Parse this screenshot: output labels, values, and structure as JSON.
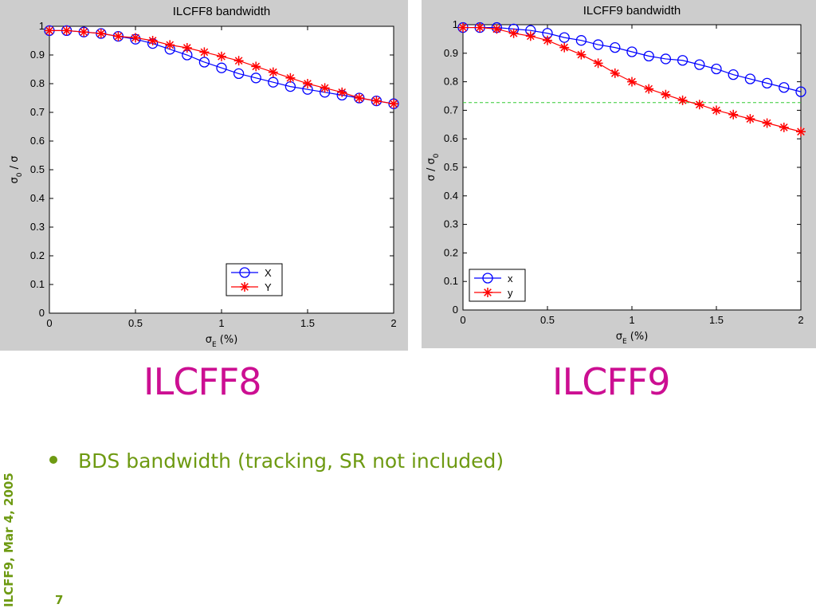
{
  "slide": {
    "caption_left": "ILCFF8",
    "caption_right": "ILCFF9",
    "bullet": "BDS bandwidth (tracking, SR not included)",
    "side_date": "ILCFF9, Mar 4, 2005",
    "page_number": "7"
  },
  "colors": {
    "caption": "#cc0f92",
    "bullet": "#6e9a12",
    "series_x": "#0000ff",
    "series_y": "#ff0000",
    "ref_line": "#33cc33"
  },
  "chart_data": [
    {
      "type": "line",
      "title": "ILCFF8 bandwidth",
      "xlabel": "σ_E (%)",
      "ylabel": "σ_0 / σ",
      "xlim": [
        0,
        2
      ],
      "ylim": [
        0,
        1
      ],
      "xticks": [
        "0",
        "0.5",
        "1",
        "1.5",
        "2"
      ],
      "yticks": [
        "0",
        "0.1",
        "0.2",
        "0.3",
        "0.4",
        "0.5",
        "0.6",
        "0.7",
        "0.8",
        "0.9",
        "1"
      ],
      "legend_position": "bottom-center",
      "grid": false,
      "x": [
        0,
        0.1,
        0.2,
        0.3,
        0.4,
        0.5,
        0.6,
        0.7,
        0.8,
        0.9,
        1.0,
        1.1,
        1.2,
        1.3,
        1.4,
        1.5,
        1.6,
        1.7,
        1.8,
        1.9,
        2.0
      ],
      "series": [
        {
          "name": "X",
          "marker": "circle",
          "values": [
            0.985,
            0.985,
            0.98,
            0.975,
            0.965,
            0.955,
            0.94,
            0.92,
            0.9,
            0.875,
            0.855,
            0.835,
            0.82,
            0.805,
            0.79,
            0.78,
            0.77,
            0.76,
            0.75,
            0.74,
            0.73
          ]
        },
        {
          "name": "Y",
          "marker": "star",
          "values": [
            0.985,
            0.985,
            0.98,
            0.975,
            0.965,
            0.96,
            0.95,
            0.935,
            0.925,
            0.91,
            0.895,
            0.88,
            0.86,
            0.84,
            0.82,
            0.8,
            0.785,
            0.77,
            0.75,
            0.74,
            0.73
          ]
        }
      ]
    },
    {
      "type": "line",
      "title": "ILCFF9 bandwidth",
      "xlabel": "σ_E (%)",
      "ylabel": "σ / σ_0",
      "xlim": [
        0,
        2
      ],
      "ylim": [
        0,
        1
      ],
      "xticks": [
        "0",
        "0.5",
        "1",
        "1.5",
        "2"
      ],
      "yticks": [
        "0",
        "0.1",
        "0.2",
        "0.3",
        "0.4",
        "0.5",
        "0.6",
        "0.7",
        "0.8",
        "0.9",
        "1"
      ],
      "legend_position": "bottom-left",
      "grid": false,
      "reference_line_y": 0.727,
      "x": [
        0,
        0.1,
        0.2,
        0.3,
        0.4,
        0.5,
        0.6,
        0.7,
        0.8,
        0.9,
        1.0,
        1.1,
        1.2,
        1.3,
        1.4,
        1.5,
        1.6,
        1.7,
        1.8,
        1.9,
        2.0
      ],
      "series": [
        {
          "name": "x",
          "marker": "circle",
          "values": [
            0.99,
            0.99,
            0.99,
            0.985,
            0.98,
            0.97,
            0.955,
            0.945,
            0.93,
            0.92,
            0.905,
            0.89,
            0.88,
            0.875,
            0.86,
            0.845,
            0.825,
            0.81,
            0.795,
            0.78,
            0.765
          ]
        },
        {
          "name": "y",
          "marker": "star",
          "values": [
            0.99,
            0.99,
            0.985,
            0.97,
            0.96,
            0.945,
            0.92,
            0.895,
            0.865,
            0.83,
            0.8,
            0.775,
            0.755,
            0.735,
            0.72,
            0.7,
            0.685,
            0.67,
            0.655,
            0.64,
            0.625
          ]
        }
      ]
    }
  ]
}
